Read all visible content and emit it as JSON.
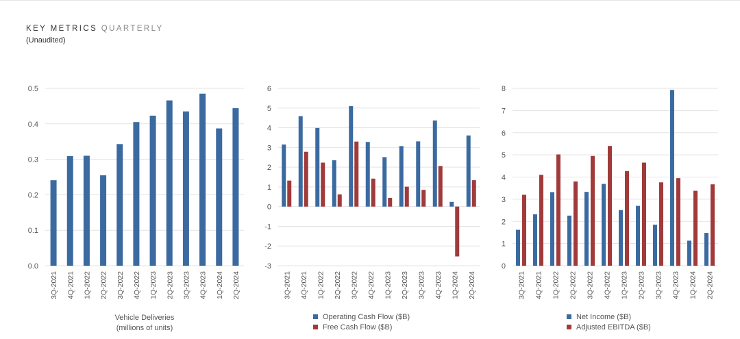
{
  "header": {
    "title": "KEY METRICS",
    "title_suffix": "QUARTERLY",
    "subtitle": "(Unaudited)"
  },
  "colors": {
    "blue": "#3b6aa0",
    "red": "#a13a3a",
    "grid": "#e3e3e3"
  },
  "chart_data": [
    {
      "type": "bar",
      "categories": [
        "3Q-2021",
        "4Q-2021",
        "1Q-2022",
        "2Q-2022",
        "3Q-2022",
        "4Q-2022",
        "1Q-2023",
        "2Q-2023",
        "3Q-2023",
        "4Q-2023",
        "1Q-2024",
        "2Q-2024"
      ],
      "series": [
        {
          "values": [
            0.241,
            0.309,
            0.31,
            0.255,
            0.343,
            0.405,
            0.423,
            0.466,
            0.435,
            0.485,
            0.387,
            0.444
          ]
        }
      ],
      "ylim": [
        0,
        0.5
      ],
      "yticks": [
        "0.0",
        "0.1",
        "0.2",
        "0.3",
        "0.4",
        "0.5"
      ],
      "caption": [
        "Vehicle Deliveries",
        "(millions of units)"
      ],
      "grid": true
    },
    {
      "type": "bar",
      "categories": [
        "3Q-2021",
        "4Q-2021",
        "1Q-2022",
        "2Q-2022",
        "3Q-2022",
        "4Q-2022",
        "1Q-2023",
        "2Q-2023",
        "3Q-2023",
        "4Q-2023",
        "1Q-2024",
        "2Q-2024"
      ],
      "series": [
        {
          "name": "Operating Cash Flow ($B)",
          "values": [
            3.15,
            4.59,
            3.99,
            2.35,
            5.1,
            3.28,
            2.51,
            3.07,
            3.31,
            4.37,
            0.24,
            3.61
          ]
        },
        {
          "name": "Free Cash Flow ($B)",
          "values": [
            1.32,
            2.78,
            2.23,
            0.62,
            3.3,
            1.42,
            0.44,
            1.01,
            0.85,
            2.06,
            -2.53,
            1.34
          ]
        }
      ],
      "ylim": [
        -3,
        6
      ],
      "yticks": [
        "-3",
        "-2",
        "-1",
        "0",
        "1",
        "2",
        "3",
        "4",
        "5",
        "6"
      ],
      "legend_position": "bottom",
      "grid": true
    },
    {
      "type": "bar",
      "categories": [
        "3Q-2021",
        "4Q-2021",
        "1Q-2022",
        "2Q-2022",
        "3Q-2022",
        "4Q-2022",
        "1Q-2023",
        "2Q-2023",
        "3Q-2023",
        "4Q-2023",
        "1Q-2024",
        "2Q-2024"
      ],
      "series": [
        {
          "name": "Net Income ($B)",
          "values": [
            1.62,
            2.32,
            3.32,
            2.26,
            3.33,
            3.69,
            2.51,
            2.7,
            1.85,
            7.93,
            1.13,
            1.48
          ]
        },
        {
          "name": "Adjusted EBITDA ($B)",
          "values": [
            3.2,
            4.1,
            5.02,
            3.8,
            4.95,
            5.4,
            4.27,
            4.65,
            3.76,
            3.95,
            3.38,
            3.67
          ]
        }
      ],
      "ylim": [
        0,
        8
      ],
      "yticks": [
        "0",
        "1",
        "2",
        "3",
        "4",
        "5",
        "6",
        "7",
        "8"
      ],
      "legend_position": "bottom",
      "grid": true
    }
  ]
}
